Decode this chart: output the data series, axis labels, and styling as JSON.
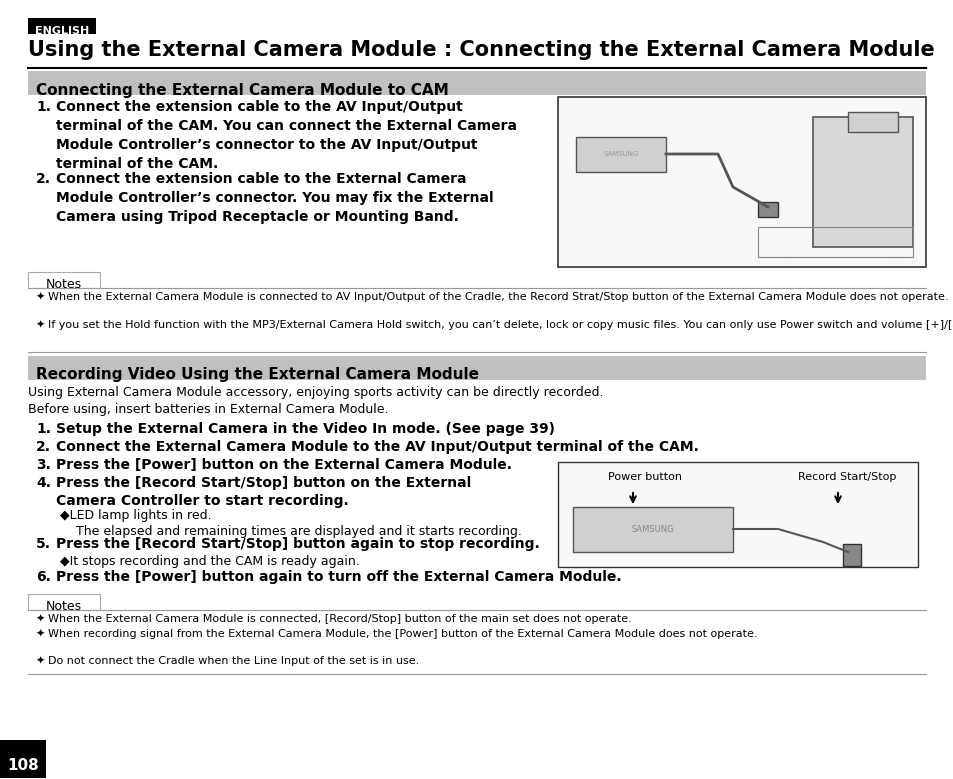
{
  "page_bg": "#ffffff",
  "english_label": "ENGLISH",
  "english_bg": "#000000",
  "english_color": "#ffffff",
  "main_title": "Using the External Camera Module : Connecting the External Camera Module",
  "section1_title": "Connecting the External Camera Module to CAM",
  "section1_bg": "#c0c0c0",
  "section1_items": [
    "Connect the extension cable to the AV Input/Output\nterminal of the CAM. You can connect the External Camera\nModule Controller’s connector to the AV Input/Output\nterminal of the CAM.",
    "Connect the extension cable to the External Camera\nModule Controller’s connector. You may fix the External\nCamera using Tripod Receptacle or Mounting Band."
  ],
  "notes1_items": [
    "When the External Camera Module is connected to AV Input/Output of the Cradle, the Record Strat/Stop button of the External Camera Module does not operate.",
    "If you set the Hold function with the MP3/External Camera Hold switch, you can’t delete, lock or copy music files. You can only use Power switch and volume [+]/[-] buttons."
  ],
  "section2_title": "Recording Video Using the External Camera Module",
  "section2_bg": "#c0c0c0",
  "section2_intro": "Using External Camera Module accessory, enjoying sports activity can be directly recorded.\nBefore using, insert batteries in External Camera Module.",
  "section2_items": [
    "Setup the External Camera in the Video In mode. (See page 39)",
    "Connect the External Camera Module to the AV Input/Output terminal of the CAM.",
    "Press the [Power] button on the External Camera Module.",
    "Press the [Record Start/Stop] button on the External\nCamera Controller to start recording.",
    "Press the [Record Start/Stop] button again to stop recording.",
    "Press the [Power] button again to turn off the External Camera Module."
  ],
  "section2_sub_items": {
    "4": "◆LED lamp lights in red.\n    The elapsed and remaining times are displayed and it starts recording.",
    "5": "◆It stops recording and the CAM is ready again."
  },
  "notes2_items": [
    "When the External Camera Module is connected, [Record/Stop] button of the main set does not operate.",
    "When recording signal from the External Camera Module, the [Power] button of the External Camera Module does not operate.",
    "Do not connect the Cradle when the Line Input of the set is in use."
  ],
  "page_number": "108",
  "page_num_bg": "#000000",
  "page_num_color": "#ffffff"
}
